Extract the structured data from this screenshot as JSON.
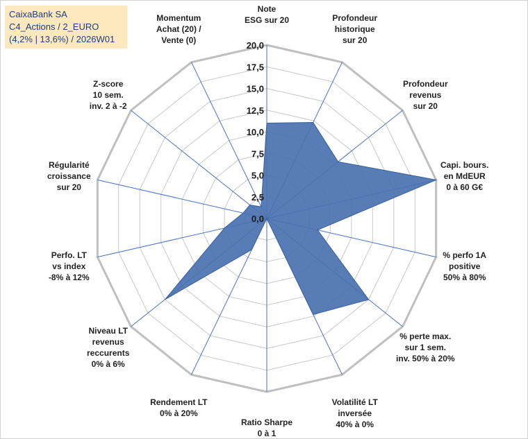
{
  "info": {
    "line1": "CaixaBank SA",
    "line2": "C4_Actions / 2_EURO",
    "line3": "(4,2% | 13,6%) / 2026W01"
  },
  "colors": {
    "area_fill": "#4a72b0",
    "area_stroke": "#3a5f9c",
    "grid": "#c8c8c8",
    "outer_ring": "#bfbfbf",
    "spoke": "#4472c4",
    "info_bg": "#fde9bd",
    "info_text": "#1f3d78"
  },
  "chart_data": {
    "type": "radar",
    "r_min": 0,
    "r_max": 20,
    "tick_step": 2.5,
    "tick_labels": [
      "0,0",
      "2,5",
      "5,0",
      "7,5",
      "10,0",
      "12,5",
      "15,0",
      "17,5",
      "20,0"
    ],
    "axes": [
      {
        "label": [
          "Note",
          "ESG sur 20"
        ],
        "value": 11.0
      },
      {
        "label": [
          "Profondeur",
          "historique",
          "sur 20"
        ],
        "value": 12.3
      },
      {
        "label": [
          "Profondeur",
          "revenus",
          "sur 20"
        ],
        "value": 10.5
      },
      {
        "label": [
          "Capi. bours.",
          "en MdEUR",
          "0 à 60 G€"
        ],
        "value": 20.0
      },
      {
        "label": [
          "% perfo 1A",
          "positive",
          "50% à 80%"
        ],
        "value": 6.0
      },
      {
        "label": [
          "% perte max.",
          "sur 1 sem.",
          "inv. 50% à 20%"
        ],
        "value": 15.0
      },
      {
        "label": [
          "Volatilité LT",
          "inversée",
          "40% à 0%"
        ],
        "value": 12.3
      },
      {
        "label": [
          "Ratio Sharpe",
          "0 à 1"
        ],
        "value": 0.0
      },
      {
        "label": [
          "Rendement LT",
          "0% à 20%"
        ],
        "value": 4.0
      },
      {
        "label": [
          "Niveau LT",
          "revenus",
          "reccurents",
          "0% à 6%"
        ],
        "value": 15.0
      },
      {
        "label": [
          "Perfo. LT",
          "vs index",
          "-8% à 12%"
        ],
        "value": 5.0
      },
      {
        "label": [
          "Régularité",
          "croissance",
          "sur 20"
        ],
        "value": 2.8
      },
      {
        "label": [
          "Z-score",
          "10 sem.",
          "inv. 2 à -2"
        ],
        "value": 2.5
      },
      {
        "label": [
          "Momentum",
          "Achat (20) /",
          "Vente (0)"
        ],
        "value": 1.5
      }
    ]
  }
}
